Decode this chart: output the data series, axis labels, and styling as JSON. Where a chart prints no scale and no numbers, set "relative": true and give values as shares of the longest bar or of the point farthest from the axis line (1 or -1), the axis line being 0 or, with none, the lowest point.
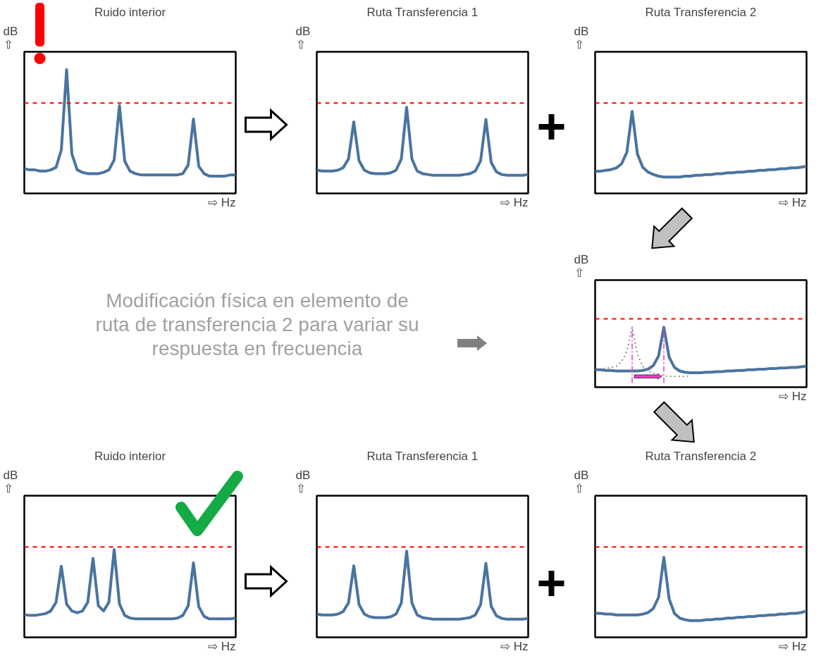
{
  "chart_data": [
    {
      "type": "line",
      "title": "Ruido interior",
      "ylabel": "dB\n⇧",
      "xlabel": "⇨ Hz",
      "relative": true,
      "categories": [
        null,
        null,
        null,
        null,
        null,
        null,
        null,
        null,
        null,
        null,
        null,
        null,
        null,
        null,
        null,
        null,
        null,
        null,
        null,
        null,
        null,
        null,
        null,
        null,
        null,
        null,
        null,
        null,
        null,
        null,
        null,
        null,
        null,
        null,
        null,
        null,
        null,
        null,
        null,
        null,
        null
      ],
      "series": [
        {
          "color": "#4a74a0",
          "values": [
            0.2,
            0.19,
            0.19,
            0.18,
            0.18,
            0.19,
            0.21,
            0.35,
            1.0,
            0.32,
            0.19,
            0.17,
            0.16,
            0.16,
            0.16,
            0.17,
            0.19,
            0.27,
            0.71,
            0.26,
            0.18,
            0.16,
            0.15,
            0.15,
            0.15,
            0.15,
            0.15,
            0.15,
            0.15,
            0.15,
            0.16,
            0.23,
            0.6,
            0.22,
            0.16,
            0.14,
            0.14,
            0.14,
            0.14,
            0.15,
            0.15
          ]
        }
      ],
      "ref_lines": [
        {
          "axis": "y",
          "value": 0.73,
          "color": "#ff0000",
          "line_style": "dashed"
        }
      ]
    },
    {
      "type": "line",
      "title": "Ruta Transferencia 1",
      "ylabel": "dB\n⇧",
      "xlabel": "⇨ Hz",
      "relative": true,
      "categories": [
        null,
        null,
        null,
        null,
        null,
        null,
        null,
        null,
        null,
        null,
        null,
        null,
        null,
        null,
        null,
        null,
        null,
        null,
        null,
        null,
        null,
        null,
        null,
        null,
        null,
        null,
        null,
        null,
        null,
        null,
        null,
        null,
        null,
        null,
        null,
        null,
        null,
        null,
        null,
        null,
        null
      ],
      "series": [
        {
          "color": "#4a74a0",
          "values": [
            0.27,
            0.26,
            0.26,
            0.26,
            0.27,
            0.3,
            0.4,
            0.83,
            0.38,
            0.27,
            0.24,
            0.23,
            0.23,
            0.23,
            0.24,
            0.27,
            0.4,
            1.0,
            0.4,
            0.26,
            0.23,
            0.22,
            0.21,
            0.21,
            0.21,
            0.21,
            0.21,
            0.21,
            0.22,
            0.23,
            0.26,
            0.38,
            0.86,
            0.36,
            0.25,
            0.22,
            0.21,
            0.21,
            0.21,
            0.21,
            0.22
          ]
        }
      ],
      "ref_lines": [
        {
          "axis": "y",
          "value": 1.05,
          "color": "#ff0000",
          "line_style": "dashed"
        }
      ]
    },
    {
      "type": "line",
      "title": "Ruta Transferencia 2",
      "ylabel": "dB\n⇧",
      "xlabel": "⇨ Hz",
      "relative": true,
      "categories": [
        null,
        null,
        null,
        null,
        null,
        null,
        null,
        null,
        null,
        null,
        null,
        null,
        null,
        null,
        null,
        null,
        null,
        null,
        null,
        null,
        null,
        null,
        null,
        null,
        null,
        null,
        null,
        null,
        null,
        null,
        null,
        null,
        null,
        null,
        null,
        null,
        null,
        null,
        null,
        null,
        null
      ],
      "series": [
        {
          "color": "#4a74a0",
          "values": [
            0.27,
            0.27,
            0.28,
            0.29,
            0.31,
            0.36,
            0.5,
            1.0,
            0.48,
            0.32,
            0.26,
            0.23,
            0.21,
            0.2,
            0.2,
            0.2,
            0.2,
            0.21,
            0.21,
            0.22,
            0.22,
            0.23,
            0.23,
            0.24,
            0.24,
            0.25,
            0.25,
            0.26,
            0.26,
            0.27,
            0.27,
            0.28,
            0.28,
            0.29,
            0.29,
            0.3,
            0.3,
            0.31,
            0.31,
            0.32,
            0.33
          ]
        }
      ],
      "ref_lines": [
        {
          "axis": "y",
          "value": 1.1,
          "color": "#ff0000",
          "line_style": "dashed"
        }
      ]
    },
    {
      "type": "other",
      "annotations": [
        "Modificación física en elemento de ruta de transferencia 2 para variar su respuesta en frecuencia"
      ]
    },
    {
      "type": "line",
      "ylabel": "dB\n⇧",
      "xlabel": "⇨ Hz",
      "relative": true,
      "categories": [
        null,
        null,
        null,
        null,
        null,
        null,
        null,
        null,
        null,
        null,
        null,
        null,
        null,
        null,
        null,
        null,
        null,
        null,
        null,
        null,
        null,
        null,
        null,
        null,
        null,
        null,
        null,
        null,
        null,
        null,
        null,
        null,
        null,
        null,
        null,
        null,
        null,
        null,
        null,
        null,
        null
      ],
      "series": [
        {
          "color": "#4a74a0",
          "values": [
            0.29,
            0.29,
            0.28,
            0.28,
            0.27,
            0.27,
            0.27,
            0.27,
            0.27,
            0.28,
            0.3,
            0.36,
            0.52,
            1.0,
            0.5,
            0.33,
            0.27,
            0.25,
            0.24,
            0.24,
            0.24,
            0.25,
            0.25,
            0.26,
            0.26,
            0.27,
            0.27,
            0.28,
            0.28,
            0.29,
            0.29,
            0.3,
            0.3,
            0.31,
            0.31,
            0.32,
            0.32,
            0.33,
            0.33,
            0.34,
            0.35
          ]
        },
        {
          "color": "#808080",
          "line_style": "dotted",
          "values": [
            0.29,
            0.3,
            0.31,
            0.33,
            0.35,
            0.42,
            0.6,
            1.0,
            0.55,
            0.35,
            0.27,
            0.23,
            0.21,
            0.19,
            0.18,
            0.18,
            0.18,
            0.18,
            0.19,
            null,
            null,
            null,
            null,
            null,
            null,
            null,
            null,
            null,
            null,
            null,
            null,
            null,
            null,
            null,
            null,
            null,
            null,
            null,
            null,
            null,
            null
          ]
        }
      ],
      "ref_lines": [
        {
          "axis": "y",
          "value": 1.14,
          "color": "#ff0000",
          "line_style": "dashed"
        }
      ]
    },
    {
      "type": "line",
      "title": "Ruido interior",
      "ylabel": "dB\n⇧",
      "xlabel": "⇨ Hz",
      "relative": true,
      "categories": [
        null,
        null,
        null,
        null,
        null,
        null,
        null,
        null,
        null,
        null,
        null,
        null,
        null,
        null,
        null,
        null,
        null,
        null,
        null,
        null,
        null,
        null,
        null,
        null,
        null,
        null,
        null,
        null,
        null,
        null,
        null,
        null,
        null,
        null,
        null,
        null,
        null,
        null,
        null,
        null,
        null
      ],
      "series": [
        {
          "color": "#4a74a0",
          "values": [
            0.26,
            0.25,
            0.25,
            0.26,
            0.27,
            0.3,
            0.4,
            0.81,
            0.38,
            0.3,
            0.28,
            0.3,
            0.4,
            0.9,
            0.36,
            0.3,
            0.4,
            1.0,
            0.38,
            0.25,
            0.22,
            0.21,
            0.21,
            0.21,
            0.21,
            0.21,
            0.21,
            0.21,
            0.21,
            0.22,
            0.25,
            0.36,
            0.85,
            0.35,
            0.24,
            0.21,
            0.21,
            0.21,
            0.21,
            0.21,
            0.22
          ]
        }
      ],
      "ref_lines": [
        {
          "axis": "y",
          "value": 1.03,
          "color": "#ff0000",
          "line_style": "dashed"
        }
      ]
    },
    {
      "type": "line",
      "title": "Ruta Transferencia 1",
      "ylabel": "dB\n⇧",
      "xlabel": "⇨ Hz",
      "relative": true,
      "categories": [
        null,
        null,
        null,
        null,
        null,
        null,
        null,
        null,
        null,
        null,
        null,
        null,
        null,
        null,
        null,
        null,
        null,
        null,
        null,
        null,
        null,
        null,
        null,
        null,
        null,
        null,
        null,
        null,
        null,
        null,
        null,
        null,
        null,
        null,
        null,
        null,
        null,
        null,
        null,
        null,
        null
      ],
      "series": [
        {
          "color": "#4a74a0",
          "values": [
            0.27,
            0.26,
            0.26,
            0.26,
            0.27,
            0.3,
            0.4,
            0.83,
            0.38,
            0.27,
            0.24,
            0.23,
            0.23,
            0.23,
            0.24,
            0.27,
            0.4,
            1.0,
            0.4,
            0.26,
            0.23,
            0.22,
            0.21,
            0.21,
            0.21,
            0.21,
            0.21,
            0.21,
            0.22,
            0.23,
            0.26,
            0.38,
            0.86,
            0.36,
            0.25,
            0.22,
            0.21,
            0.21,
            0.21,
            0.21,
            0.22
          ]
        }
      ],
      "ref_lines": [
        {
          "axis": "y",
          "value": 1.05,
          "color": "#ff0000",
          "line_style": "dashed"
        }
      ]
    },
    {
      "type": "line",
      "title": "Ruta Transferencia 2",
      "ylabel": "dB\n⇧",
      "xlabel": "⇨ Hz",
      "relative": true,
      "categories": [
        null,
        null,
        null,
        null,
        null,
        null,
        null,
        null,
        null,
        null,
        null,
        null,
        null,
        null,
        null,
        null,
        null,
        null,
        null,
        null,
        null,
        null,
        null,
        null,
        null,
        null,
        null,
        null,
        null,
        null,
        null,
        null,
        null,
        null,
        null,
        null,
        null,
        null,
        null,
        null,
        null
      ],
      "series": [
        {
          "color": "#4a74a0",
          "values": [
            0.3,
            0.3,
            0.29,
            0.29,
            0.28,
            0.28,
            0.28,
            0.28,
            0.28,
            0.29,
            0.31,
            0.36,
            0.5,
            1.0,
            0.48,
            0.3,
            0.24,
            0.22,
            0.21,
            0.21,
            0.21,
            0.22,
            0.22,
            0.23,
            0.23,
            0.24,
            0.24,
            0.25,
            0.25,
            0.26,
            0.26,
            0.27,
            0.27,
            0.28,
            0.28,
            0.29,
            0.29,
            0.3,
            0.3,
            0.31,
            0.33
          ]
        }
      ],
      "ref_lines": [
        {
          "axis": "y",
          "value": 1.13,
          "color": "#ff0000",
          "line_style": "dashed"
        }
      ]
    }
  ]
}
